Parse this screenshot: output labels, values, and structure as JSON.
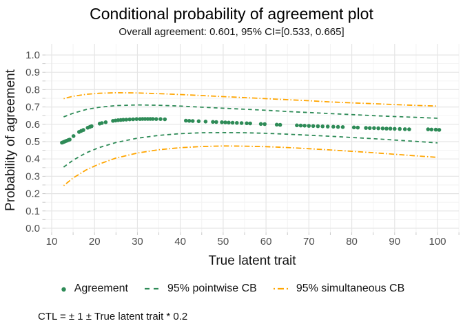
{
  "title": "Conditional probability of agreement plot",
  "subtitle": "Overall agreement: 0.601, 95% CI=[0.533, 0.665]",
  "caption": "CTL = ± 1 ± True latent trait * 0.2",
  "colors": {
    "point": "#2e8b57",
    "pointwise": "#2e8b57",
    "simultaneous": "#ffa500",
    "grid_major": "#e5e5e5",
    "grid_minor": "#f2f2f2",
    "tick": "#c9c9c9",
    "axis_text": "#4d4d4d"
  },
  "axes": {
    "x": {
      "label": "True latent trait",
      "ticks": [
        10,
        20,
        30,
        40,
        50,
        60,
        70,
        80,
        90,
        100
      ],
      "minor_ticks": [
        15,
        25,
        35,
        45,
        55,
        65,
        75,
        85,
        95,
        105
      ],
      "range": [
        10,
        100
      ]
    },
    "y": {
      "label": "Probability of agreement",
      "ticks": [
        0.0,
        0.1,
        0.2,
        0.3,
        0.4,
        0.5,
        0.6,
        0.7,
        0.8,
        0.9,
        1.0
      ],
      "tick_labels": [
        "0.0",
        "0.1",
        "0.2",
        "0.3",
        "0.4",
        "0.5",
        "0.6",
        "0.7",
        "0.8",
        "0.9",
        "1.0"
      ],
      "minor_ticks": [
        0.05,
        0.15,
        0.25,
        0.35,
        0.45,
        0.55,
        0.65,
        0.75,
        0.85,
        0.95
      ],
      "range": [
        0,
        1
      ]
    }
  },
  "legend": {
    "items": [
      {
        "label": "Agreement",
        "type": "point",
        "color": "#2e8b57"
      },
      {
        "label": "95% pointwise CB",
        "type": "dashed",
        "color": "#2e8b57"
      },
      {
        "label": "95% simultaneous CB",
        "type": "dashdot",
        "color": "#ffa500"
      }
    ]
  },
  "chart_data": {
    "type": "scatter",
    "title": "Conditional probability of agreement plot",
    "subtitle": "Overall agreement: 0.601, 95% CI=[0.533, 0.665]",
    "xlabel": "True latent trait",
    "ylabel": "Probability of agreement",
    "xlim": [
      10,
      100
    ],
    "ylim": [
      0,
      1
    ],
    "grid": "major+minor",
    "legend_position": "bottom",
    "series": [
      {
        "name": "Agreement",
        "kind": "scatter",
        "color": "#2e8b57",
        "points": [
          [
            12.4,
            0.494
          ],
          [
            12.7,
            0.497
          ],
          [
            13.0,
            0.5
          ],
          [
            13.3,
            0.503
          ],
          [
            13.6,
            0.506
          ],
          [
            13.9,
            0.509
          ],
          [
            14.2,
            0.512
          ],
          [
            15.1,
            0.532
          ],
          [
            16.4,
            0.556
          ],
          [
            16.9,
            0.562
          ],
          [
            17.4,
            0.567
          ],
          [
            18.4,
            0.58
          ],
          [
            18.9,
            0.585
          ],
          [
            19.3,
            0.589
          ],
          [
            21.2,
            0.604
          ],
          [
            21.7,
            0.607
          ],
          [
            22.6,
            0.612
          ],
          [
            24.3,
            0.62
          ],
          [
            24.9,
            0.622
          ],
          [
            25.5,
            0.624
          ],
          [
            26.1,
            0.625
          ],
          [
            26.7,
            0.626
          ],
          [
            27.4,
            0.627
          ],
          [
            28.2,
            0.628
          ],
          [
            29.0,
            0.629
          ],
          [
            29.8,
            0.63
          ],
          [
            30.6,
            0.63
          ],
          [
            31.2,
            0.631
          ],
          [
            31.8,
            0.631
          ],
          [
            32.4,
            0.631
          ],
          [
            33.0,
            0.631
          ],
          [
            33.6,
            0.631
          ],
          [
            34.4,
            0.63
          ],
          [
            35.4,
            0.63
          ],
          [
            36.4,
            0.629
          ],
          [
            41.3,
            0.621
          ],
          [
            42.1,
            0.62
          ],
          [
            42.9,
            0.619
          ],
          [
            44.3,
            0.618
          ],
          [
            45.9,
            0.616
          ],
          [
            47.6,
            0.614
          ],
          [
            48.4,
            0.613
          ],
          [
            49.7,
            0.612
          ],
          [
            50.5,
            0.611
          ],
          [
            51.3,
            0.61
          ],
          [
            52.2,
            0.609
          ],
          [
            53.2,
            0.608
          ],
          [
            54.3,
            0.607
          ],
          [
            55.5,
            0.606
          ],
          [
            56.3,
            0.605
          ],
          [
            58.8,
            0.602
          ],
          [
            59.7,
            0.601
          ],
          [
            62.5,
            0.598
          ],
          [
            63.3,
            0.597
          ],
          [
            67.2,
            0.594
          ],
          [
            68.1,
            0.593
          ],
          [
            69.0,
            0.592
          ],
          [
            70.0,
            0.591
          ],
          [
            71.0,
            0.59
          ],
          [
            72.1,
            0.589
          ],
          [
            73.2,
            0.588
          ],
          [
            74.4,
            0.587
          ],
          [
            75.7,
            0.586
          ],
          [
            76.8,
            0.585
          ],
          [
            77.9,
            0.584
          ],
          [
            80.5,
            0.582
          ],
          [
            81.4,
            0.581
          ],
          [
            83.3,
            0.579
          ],
          [
            84.2,
            0.578
          ],
          [
            85.2,
            0.578
          ],
          [
            86.2,
            0.577
          ],
          [
            87.2,
            0.576
          ],
          [
            88.1,
            0.575
          ],
          [
            89.0,
            0.575
          ],
          [
            90.0,
            0.574
          ],
          [
            91.2,
            0.573
          ],
          [
            92.4,
            0.572
          ],
          [
            93.4,
            0.571
          ],
          [
            97.8,
            0.571
          ],
          [
            98.6,
            0.57
          ],
          [
            99.6,
            0.569
          ],
          [
            100.4,
            0.568
          ]
        ]
      },
      {
        "name": "95% pointwise CB upper",
        "kind": "line",
        "style": "dashed",
        "color": "#2e8b57",
        "x": [
          12.8,
          15,
          18,
          21,
          25,
          30,
          35,
          40,
          45,
          50,
          55,
          60,
          65,
          70,
          75,
          80,
          85,
          90,
          95,
          100
        ],
        "y": [
          0.643,
          0.664,
          0.685,
          0.698,
          0.708,
          0.712,
          0.71,
          0.705,
          0.699,
          0.693,
          0.687,
          0.681,
          0.674,
          0.668,
          0.662,
          0.656,
          0.65,
          0.645,
          0.64,
          0.635
        ]
      },
      {
        "name": "95% pointwise CB lower",
        "kind": "line",
        "style": "dashed",
        "color": "#2e8b57",
        "x": [
          12.8,
          15,
          18,
          21,
          25,
          30,
          35,
          40,
          45,
          50,
          55,
          60,
          65,
          70,
          75,
          80,
          85,
          90,
          95,
          100
        ],
        "y": [
          0.353,
          0.393,
          0.435,
          0.465,
          0.495,
          0.52,
          0.536,
          0.546,
          0.551,
          0.552,
          0.551,
          0.548,
          0.543,
          0.537,
          0.531,
          0.524,
          0.517,
          0.509,
          0.501,
          0.493
        ]
      },
      {
        "name": "95% simultaneous CB upper",
        "kind": "line",
        "style": "dashdot",
        "color": "#ffa500",
        "x": [
          12.8,
          15,
          18,
          21,
          25,
          30,
          35,
          40,
          45,
          50,
          55,
          60,
          65,
          70,
          75,
          80,
          85,
          90,
          95,
          100
        ],
        "y": [
          0.748,
          0.762,
          0.773,
          0.779,
          0.782,
          0.781,
          0.777,
          0.772,
          0.766,
          0.76,
          0.754,
          0.748,
          0.742,
          0.736,
          0.729,
          0.724,
          0.719,
          0.714,
          0.709,
          0.705
        ]
      },
      {
        "name": "95% simultaneous CB lower",
        "kind": "line",
        "style": "dashdot",
        "color": "#ffa500",
        "x": [
          12.8,
          15,
          18,
          21,
          25,
          30,
          35,
          40,
          45,
          50,
          55,
          60,
          65,
          70,
          75,
          80,
          85,
          90,
          95,
          100
        ],
        "y": [
          0.246,
          0.29,
          0.336,
          0.37,
          0.405,
          0.434,
          0.453,
          0.465,
          0.472,
          0.475,
          0.474,
          0.471,
          0.466,
          0.459,
          0.452,
          0.444,
          0.436,
          0.427,
          0.418,
          0.409
        ]
      }
    ]
  }
}
